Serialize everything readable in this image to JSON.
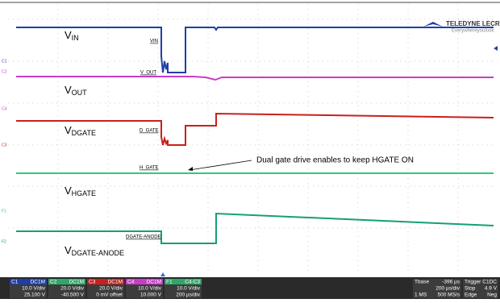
{
  "logo": {
    "brand": "TELEDYNE LECROY",
    "tagline": "Everywhereyoulook"
  },
  "signals": [
    {
      "main": "V",
      "sub": "IN",
      "tag": "VIN"
    },
    {
      "main": "V",
      "sub": "OUT",
      "tag": "V_OUT"
    },
    {
      "main": "V",
      "sub": "DGATE",
      "tag": "D_GATE"
    },
    {
      "main": "V",
      "sub": "HGATE",
      "tag": "H_GATE"
    },
    {
      "main": "V",
      "sub": "DGATE-ANODE",
      "tag": "DGATE-ANODE"
    }
  ],
  "annotation": "Dual gate drive enables to keep HGATE ON",
  "markers": [
    "C1",
    "C2",
    "C4",
    "C3",
    "F1",
    "F2"
  ],
  "channels": [
    {
      "name": "C1",
      "coupling": "DC1M",
      "scale": "10.0 V/div",
      "offset": "25.100 V"
    },
    {
      "name": "C2",
      "coupling": "DC1M",
      "scale": "20.0 V/div",
      "offset": "-40.500 V"
    },
    {
      "name": "C3",
      "coupling": "DC1M",
      "scale": "20.0 V/div",
      "offset": "0 mV offset"
    },
    {
      "name": "C4",
      "coupling": "DC1M",
      "scale": "10.0 V/div",
      "offset": "10.000 V"
    },
    {
      "name": "F1",
      "coupling": "C4-C3",
      "scale": "10.0 V/div",
      "offset": "200 µs/div"
    }
  ],
  "timebase": {
    "label": "Tbase",
    "delay": "-396 µs",
    "perdiv": "200 µs/div",
    "samples": "1 MS",
    "rate": "500 MS/s"
  },
  "trigger": {
    "label": "Trigger",
    "source": "C1DC",
    "mode": "Stop",
    "level": "4.9 V",
    "type": "Edge",
    "slope": "Neg"
  }
}
